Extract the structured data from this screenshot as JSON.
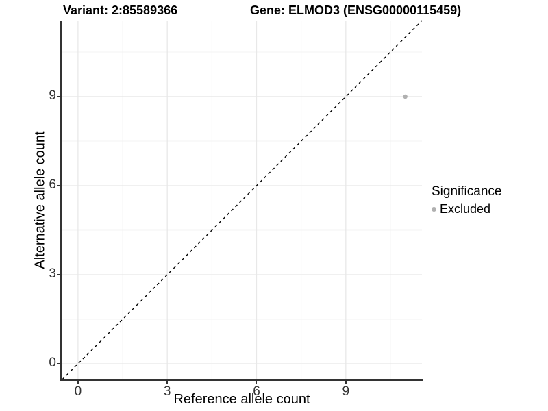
{
  "chart_data": {
    "type": "scatter",
    "titles": [
      "Variant: 2:85589366",
      "Gene: ELMOD3 (ENSG00000115459)"
    ],
    "xlabel": "Reference allele count",
    "ylabel": "Alternative allele count",
    "xlim": [
      -0.55,
      11.56
    ],
    "ylim": [
      -0.53,
      11.56
    ],
    "x_ticks": [
      0,
      3,
      6,
      9
    ],
    "y_ticks": [
      0,
      3,
      6,
      9
    ],
    "x_minor_gridlines": [
      1.5,
      4.5,
      7.5,
      10.5
    ],
    "y_minor_gridlines": [
      1.5,
      4.5,
      7.5,
      10.5
    ],
    "grid": true,
    "identity_line": {
      "style": "dashed",
      "color": "#000000",
      "from": -0.53,
      "to": 11.56
    },
    "series": [
      {
        "name": "Excluded",
        "color": "#b0b0b0",
        "points": [
          [
            11,
            9
          ]
        ]
      }
    ],
    "legend": {
      "title": "Significance",
      "position": "right",
      "entries": [
        {
          "label": "Excluded",
          "color": "#b0b0b0"
        }
      ]
    }
  },
  "colors": {
    "background": "#ffffff",
    "axis_line": "#333333",
    "tick_label": "#333333",
    "grid_major": "#e8e8e8",
    "grid_minor": "#f3f3f3"
  }
}
